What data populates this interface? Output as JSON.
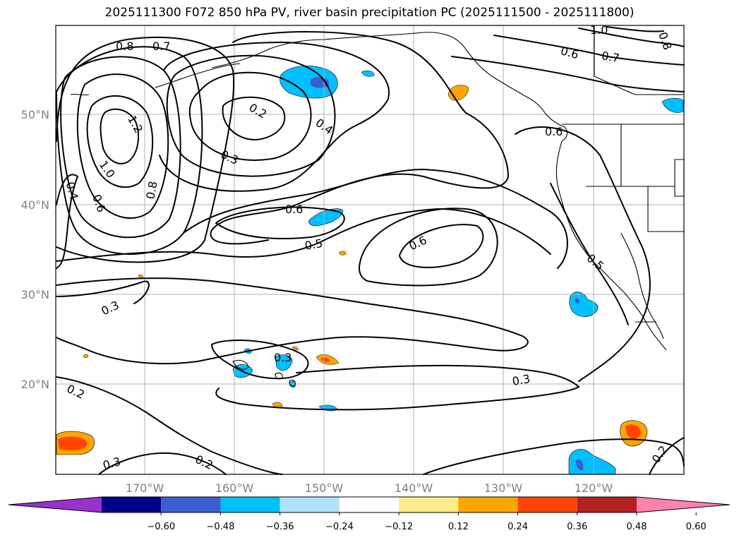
{
  "title": "2025111300 F072 850 hPa PV, river basin precipitation PC (2025111500 - 2025111800)",
  "lat_labels": [
    "50°N",
    "40°N",
    "30°N",
    "20°N"
  ],
  "lon_labels": [
    "170°W",
    "160°W",
    "150°W",
    "140°W",
    "130°W",
    "120°W"
  ],
  "colorbar": {
    "ticks": [
      "−0.60",
      "−0.48",
      "−0.36",
      "−0.24",
      "−0.12",
      "0.12",
      "0.24",
      "0.36",
      "0.48",
      "0.60"
    ],
    "colors": [
      "#9932cc",
      "#00008b",
      "#3a5fcd",
      "#00bfff",
      "#b0e2ff",
      "#ffffff",
      "#ffec8b",
      "#ffa500",
      "#ff4500",
      "#b22222",
      "#ff82ab"
    ]
  },
  "contour_labels": [
    {
      "id": "c08-nw",
      "text": "0.8"
    },
    {
      "id": "c07-n",
      "text": "0.7"
    },
    {
      "id": "c12",
      "text": "1.2"
    },
    {
      "id": "c10",
      "text": "1.0"
    },
    {
      "id": "c04-w",
      "text": "0.4"
    },
    {
      "id": "c06-w",
      "text": "0.6"
    },
    {
      "id": "c08-w",
      "text": "0.8"
    },
    {
      "id": "c02-n",
      "text": "0.2"
    },
    {
      "id": "c04-n",
      "text": "0.4"
    },
    {
      "id": "c03-n",
      "text": "0.3"
    },
    {
      "id": "c06-mid",
      "text": "0.6"
    },
    {
      "id": "c05-mid",
      "text": "0.5"
    },
    {
      "id": "c06-e",
      "text": "0.6"
    },
    {
      "id": "c03-w",
      "text": "0.3"
    },
    {
      "id": "c03-hi",
      "text": "0.3"
    },
    {
      "id": "c03-s",
      "text": "0.3"
    },
    {
      "id": "c02-sw",
      "text": "0.2"
    },
    {
      "id": "c03-sw",
      "text": "0.3"
    },
    {
      "id": "c02-s",
      "text": "0.2"
    },
    {
      "id": "c02-se",
      "text": "0.2"
    },
    {
      "id": "c10-ne",
      "text": "1.0"
    },
    {
      "id": "c08-ne",
      "text": "0.8"
    },
    {
      "id": "c06-ne",
      "text": "0.6"
    },
    {
      "id": "c07-ne",
      "text": "0.7"
    },
    {
      "id": "c05-coast",
      "text": "0.5"
    },
    {
      "id": "c06-coast",
      "text": "0.6"
    }
  ]
}
